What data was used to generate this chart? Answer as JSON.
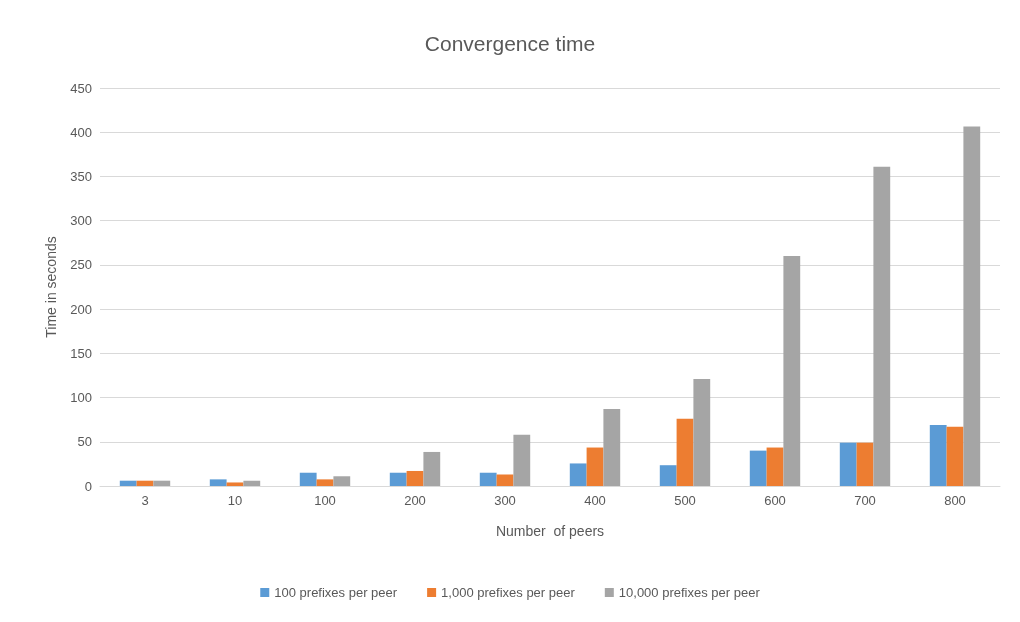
{
  "chart_data": {
    "type": "bar",
    "title": "Convergence time",
    "xlabel": "Number  of peers",
    "ylabel": "Time in seconds",
    "categories": [
      "3",
      "10",
      "100",
      "200",
      "300",
      "400",
      "500",
      "600",
      "700",
      "800"
    ],
    "series": [
      {
        "name": "100 prefixes per peer",
        "color": "#5b9bd5",
        "values": [
          6,
          7.5,
          15,
          15,
          15,
          25.5,
          23.5,
          40,
          49,
          69
        ]
      },
      {
        "name": "1,000 prefixes per peer",
        "color": "#ed7d31",
        "values": [
          6,
          4,
          7.5,
          17,
          13,
          43.5,
          76,
          43.5,
          49,
          67
        ]
      },
      {
        "name": "10,000 prefixes per peer",
        "color": "#a5a5a5",
        "values": [
          6,
          6,
          11,
          38.5,
          58,
          87,
          121,
          260,
          361,
          406.5
        ]
      }
    ],
    "ylim": [
      0,
      450
    ],
    "yticks": [
      0,
      50,
      100,
      150,
      200,
      250,
      300,
      350,
      400,
      450
    ],
    "grid": "y",
    "legend": "bottom"
  }
}
